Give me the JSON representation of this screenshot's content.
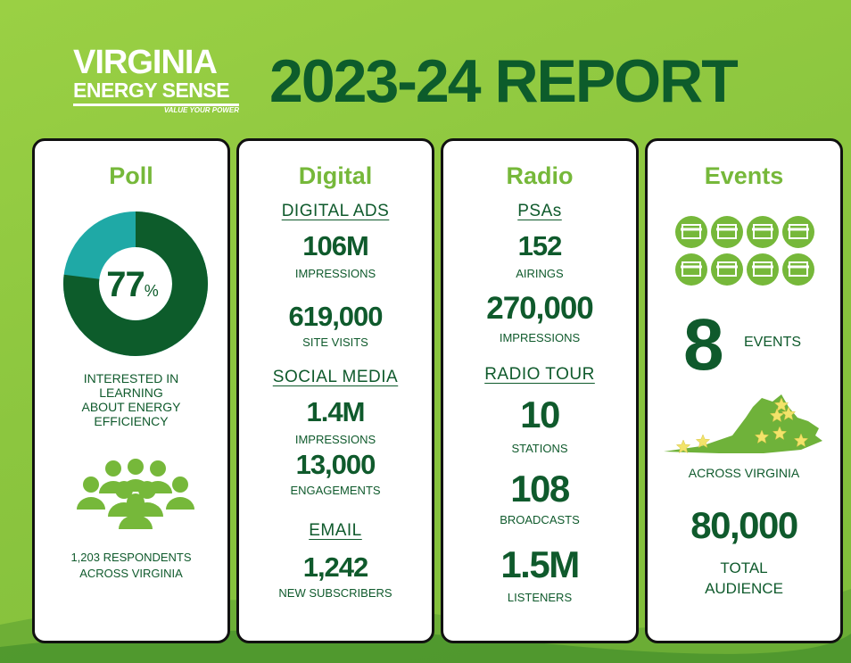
{
  "header": {
    "logo": {
      "line1": "VIRGINIA",
      "line2": "ENERGY SENSE",
      "tagline": "VALUE YOUR POWER"
    },
    "title": "2023-24 REPORT"
  },
  "poll": {
    "title": "Poll",
    "percent": 77,
    "percent_sign": "%",
    "caption": [
      "INTERESTED IN",
      "LEARNING",
      "ABOUT ENERGY",
      "EFFICIENCY"
    ],
    "respondents": [
      "1,203 RESPONDENTS",
      "ACROSS VIRGINIA"
    ]
  },
  "digital": {
    "title": "Digital",
    "digital_ads": {
      "heading": "DIGITAL ADS",
      "impressions": "106M",
      "impressions_label": "IMPRESSIONS",
      "site_visits": "619,000",
      "site_visits_label": "SITE VISITS"
    },
    "social_media": {
      "heading": "SOCIAL MEDIA",
      "impressions": "1.4M",
      "impressions_label": "IMPRESSIONS",
      "engagements": "13,000",
      "engagements_label": "ENGAGEMENTS"
    },
    "email": {
      "heading": "EMAIL",
      "subscribers": "1,242",
      "subscribers_label": "NEW SUBSCRIBERS"
    }
  },
  "radio": {
    "title": "Radio",
    "psas": {
      "heading": "PSAs",
      "airings": "152",
      "airings_label": "AIRINGS",
      "impressions": "270,000",
      "impressions_label": "IMPRESSIONS"
    },
    "radio_tour": {
      "heading": "RADIO TOUR",
      "stations": "10",
      "stations_label": "STATIONS",
      "broadcasts": "108",
      "broadcasts_label": "BROADCASTS",
      "listeners": "1.5M",
      "listeners_label": "LISTENERS"
    }
  },
  "events": {
    "title": "Events",
    "count": "8",
    "count_label": "EVENTS",
    "location": "ACROSS VIRGINIA",
    "audience": "80,000",
    "audience_label": [
      "TOTAL",
      "AUDIENCE"
    ]
  }
}
